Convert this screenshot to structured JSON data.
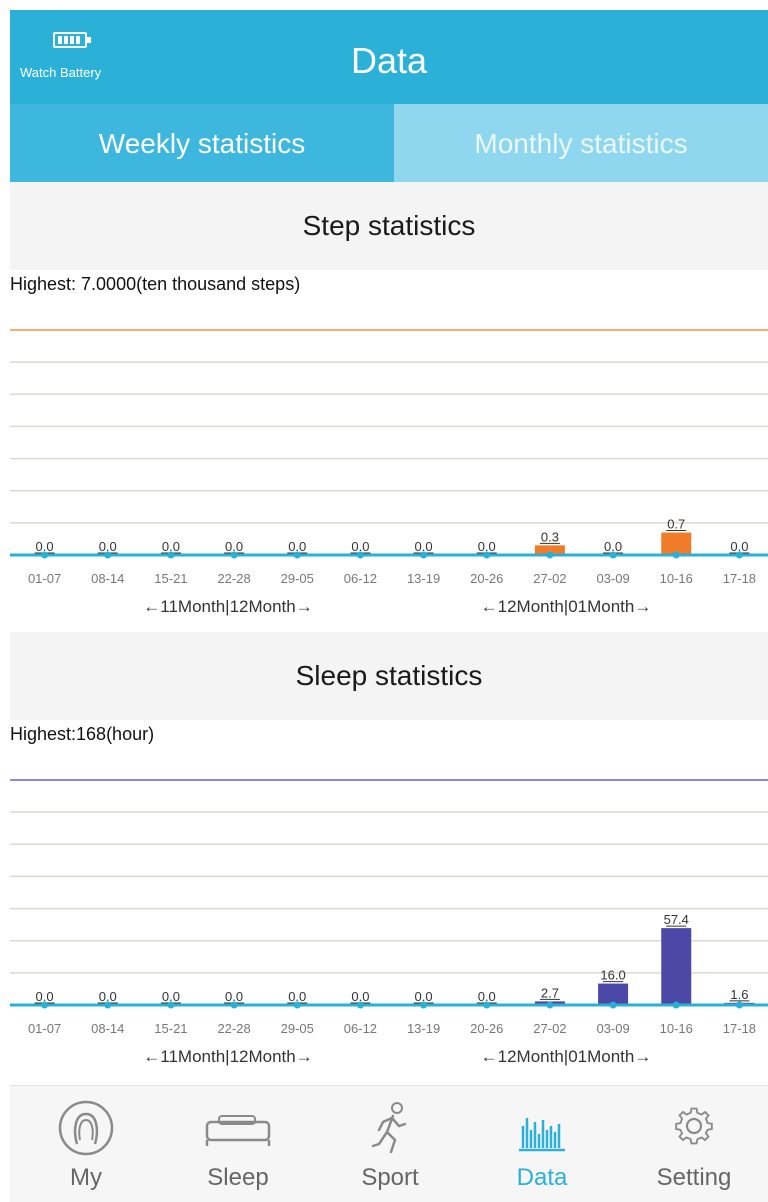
{
  "header": {
    "battery_label": "Watch Battery",
    "title": "Data",
    "accent": "#2bb1d8"
  },
  "tabs": [
    {
      "label": "Weekly statistics",
      "active": true
    },
    {
      "label": "Monthly statistics",
      "active": false
    }
  ],
  "step_section": {
    "title": "Step statistics",
    "highest": "Highest:  7.0000(ten thousand steps)"
  },
  "sleep_section": {
    "title": "Sleep statistics",
    "highest": "Highest:168(hour)"
  },
  "chart_data": [
    {
      "type": "bar",
      "categories": [
        "01-07",
        "08-14",
        "15-21",
        "22-28",
        "29-05",
        "06-12",
        "13-19",
        "20-26",
        "27-02",
        "03-09",
        "10-16",
        "17-18"
      ],
      "values": [
        0.0,
        0.0,
        0.0,
        0.0,
        0.0,
        0.0,
        0.0,
        0.0,
        0.3,
        0.0,
        0.7,
        0.0
      ],
      "value_labels": [
        "0.0",
        "0.0",
        "0.0",
        "0.0",
        "0.0",
        "0.0",
        "0.0",
        "0.0",
        "0.3",
        "0.0",
        "0.7",
        "0.0"
      ],
      "ylim": [
        0,
        7
      ],
      "color": "#f07c2a",
      "month_labels": [
        "←11Month|12Month→",
        "←12Month|01Month→"
      ]
    },
    {
      "type": "bar",
      "categories": [
        "01-07",
        "08-14",
        "15-21",
        "22-28",
        "29-05",
        "06-12",
        "13-19",
        "20-26",
        "27-02",
        "03-09",
        "10-16",
        "17-18"
      ],
      "values": [
        0.0,
        0.0,
        0.0,
        0.0,
        0.0,
        0.0,
        0.0,
        0.0,
        2.7,
        16.0,
        57.4,
        1.6
      ],
      "value_labels": [
        "0.0",
        "0.0",
        "0.0",
        "0.0",
        "0.0",
        "0.0",
        "0.0",
        "0.0",
        "2.7",
        "16.0",
        "57.4",
        "1.6"
      ],
      "ylim": [
        0,
        168
      ],
      "color": "#4b48a6",
      "month_labels": [
        "←11Month|12Month→",
        "←12Month|01Month→"
      ]
    }
  ],
  "nav": [
    {
      "label": "My",
      "icon": "profile-icon",
      "active": false
    },
    {
      "label": "Sleep",
      "icon": "bed-icon",
      "active": false
    },
    {
      "label": "Sport",
      "icon": "runner-icon",
      "active": false
    },
    {
      "label": "Data",
      "icon": "bar-chart-icon",
      "active": true
    },
    {
      "label": "Setting",
      "icon": "gear-icon",
      "active": false
    }
  ]
}
